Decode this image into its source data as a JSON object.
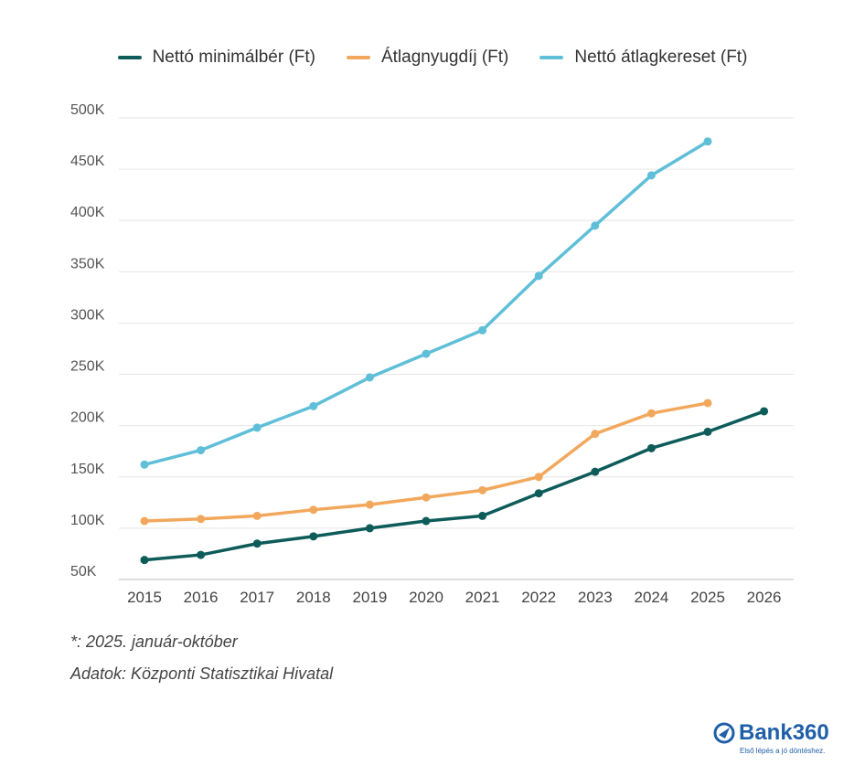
{
  "chart_data": {
    "type": "line",
    "x": [
      "2015",
      "2016",
      "2017",
      "2018",
      "2019",
      "2020",
      "2021",
      "2022",
      "2023",
      "2024",
      "2025",
      "2026"
    ],
    "series": [
      {
        "name": "Nettó minimálbér (Ft)",
        "color": "#0e5c5a",
        "values": [
          69,
          74,
          85,
          92,
          100,
          107,
          112,
          134,
          155,
          178,
          194,
          214
        ]
      },
      {
        "name": "Átlagnyugdíj (Ft)",
        "color": "#f2a85c",
        "values": [
          107,
          109,
          112,
          118,
          123,
          130,
          137,
          150,
          192,
          212,
          222,
          null
        ]
      },
      {
        "name": "Nettó átlagkereset (Ft)",
        "color": "#5fbfd8",
        "values": [
          162,
          176,
          198,
          219,
          247,
          270,
          293,
          346,
          395,
          444,
          477,
          null
        ]
      }
    ],
    "yticks": [
      50,
      100,
      150,
      200,
      250,
      300,
      350,
      400,
      450,
      500
    ],
    "ytick_labels": [
      "50K",
      "100K",
      "150K",
      "200K",
      "250K",
      "300K",
      "350K",
      "400K",
      "450K",
      "500K"
    ],
    "ylim": [
      50,
      500
    ],
    "grid": true,
    "legend_position": "top"
  },
  "footnote": "*: 2025. január-október",
  "source": "Adatok: Központi Statisztikai Hivatal",
  "logo": {
    "name": "Bank360",
    "tagline": "Első lépés a jó döntéshez."
  }
}
